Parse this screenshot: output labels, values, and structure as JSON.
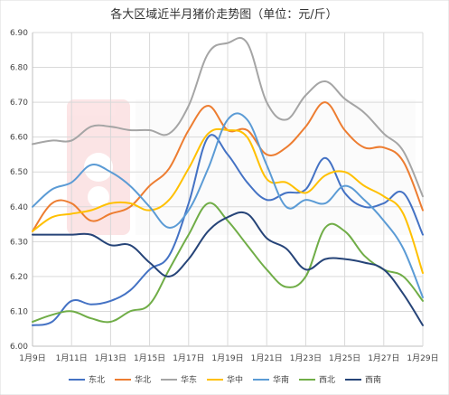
{
  "chart_data": {
    "type": "line",
    "title": "各大区域近半月猪价走势图（单位：元/斤）",
    "xlabel": "",
    "ylabel": "",
    "ylim": [
      6.0,
      6.9
    ],
    "yticks": [
      "6.00",
      "6.10",
      "6.20",
      "6.30",
      "6.40",
      "6.50",
      "6.60",
      "6.70",
      "6.80",
      "6.90"
    ],
    "x": [
      "1月9日",
      "1月10日",
      "1月11日",
      "1月12日",
      "1月13日",
      "1月14日",
      "1月15日",
      "1月16日",
      "1月17日",
      "1月18日",
      "1月19日",
      "1月20日",
      "1月21日",
      "1月22日",
      "1月23日",
      "1月24日",
      "1月25日",
      "1月26日",
      "1月27日",
      "1月28日",
      "1月29日"
    ],
    "xtick_labels": [
      "1月9日",
      "1月11日",
      "1月13日",
      "1月15日",
      "1月17日",
      "1月19日",
      "1月21日",
      "1月23日",
      "1月25日",
      "1月27日",
      "1月29日"
    ],
    "grid": true,
    "legend": "bottom",
    "series": [
      {
        "name": "东北",
        "color": "#4472c4",
        "values": [
          6.06,
          6.07,
          6.13,
          6.12,
          6.13,
          6.16,
          6.22,
          6.26,
          6.41,
          6.6,
          6.55,
          6.47,
          6.42,
          6.44,
          6.45,
          6.54,
          6.44,
          6.4,
          6.41,
          6.44,
          6.32
        ]
      },
      {
        "name": "华北",
        "color": "#ed7d31",
        "values": [
          6.33,
          6.41,
          6.41,
          6.36,
          6.38,
          6.4,
          6.46,
          6.51,
          6.62,
          6.69,
          6.62,
          6.62,
          6.55,
          6.57,
          6.63,
          6.7,
          6.62,
          6.57,
          6.57,
          6.53,
          6.39
        ]
      },
      {
        "name": "华东",
        "color": "#a5a5a5",
        "values": [
          6.58,
          6.59,
          6.59,
          6.63,
          6.63,
          6.62,
          6.62,
          6.61,
          6.69,
          6.84,
          6.87,
          6.87,
          6.7,
          6.65,
          6.72,
          6.76,
          6.71,
          6.67,
          6.61,
          6.56,
          6.43
        ]
      },
      {
        "name": "华中",
        "color": "#ffc000",
        "values": [
          6.33,
          6.37,
          6.38,
          6.39,
          6.41,
          6.41,
          6.39,
          6.42,
          6.51,
          6.61,
          6.62,
          6.6,
          6.48,
          6.47,
          6.44,
          6.49,
          6.5,
          6.46,
          6.43,
          6.38,
          6.21
        ]
      },
      {
        "name": "华南",
        "color": "#5b9bd5",
        "values": [
          6.4,
          6.45,
          6.47,
          6.52,
          6.5,
          6.46,
          6.4,
          6.34,
          6.39,
          6.51,
          6.65,
          6.65,
          6.52,
          6.4,
          6.42,
          6.41,
          6.46,
          6.42,
          6.36,
          6.28,
          6.14
        ]
      },
      {
        "name": "西北",
        "color": "#70ad47",
        "values": [
          6.07,
          6.09,
          6.1,
          6.08,
          6.07,
          6.1,
          6.12,
          6.22,
          6.32,
          6.41,
          6.36,
          6.29,
          6.22,
          6.17,
          6.2,
          6.34,
          6.33,
          6.26,
          6.22,
          6.2,
          6.13
        ]
      },
      {
        "name": "西南",
        "color": "#264478",
        "values": [
          6.32,
          6.32,
          6.32,
          6.32,
          6.29,
          6.29,
          6.24,
          6.2,
          6.25,
          6.33,
          6.37,
          6.38,
          6.31,
          6.28,
          6.22,
          6.25,
          6.25,
          6.24,
          6.22,
          6.15,
          6.06
        ]
      }
    ]
  }
}
